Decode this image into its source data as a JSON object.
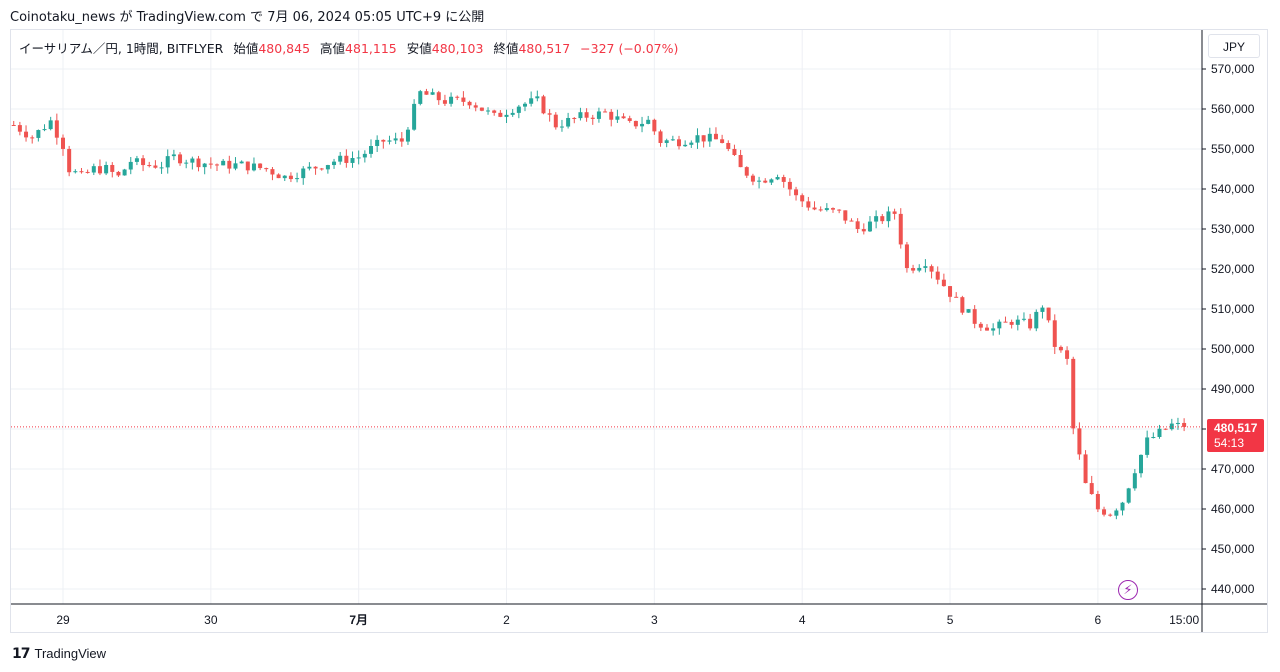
{
  "caption": "Coinotaku_news が TradingView.com で 7月 06, 2024 05:05 UTC+9 に公開",
  "legend": {
    "symbol": "イーサリアム／円, 1時間, BITFLYER",
    "open_label": "始値",
    "open": "480,845",
    "high_label": "高値",
    "high": "481,115",
    "low_label": "安値",
    "low": "480,103",
    "close_label": "終値",
    "close": "480,517",
    "change": "−327 (−0.07%)"
  },
  "currency": "JPY",
  "price_tag": {
    "price": "480,517",
    "countdown": "54:13"
  },
  "branding": "TradingView",
  "colors": {
    "up": "#26a69a",
    "down": "#ef5350",
    "grid": "#eef0f4",
    "tag": "#f23645"
  },
  "chart_data": {
    "type": "candlestick",
    "y_axis": {
      "min": 435000,
      "max": 575000,
      "ticks": [
        440000,
        450000,
        460000,
        470000,
        480000,
        490000,
        500000,
        510000,
        520000,
        530000,
        540000,
        550000,
        560000,
        570000
      ],
      "tick_labels": [
        "440,000",
        "450,000",
        "460,000",
        "470,000",
        "480,000",
        "490,000",
        "500,000",
        "510,000",
        "520,000",
        "530,000",
        "540,000",
        "550,000",
        "560,000",
        "570,000"
      ]
    },
    "x_axis": {
      "labels": [
        "29",
        "30",
        "7月",
        "2",
        "3",
        "4",
        "5",
        "6",
        "15:00"
      ],
      "label_hours": [
        0,
        24,
        48,
        72,
        96,
        120,
        144,
        168,
        182
      ],
      "label_bold": [
        false,
        false,
        true,
        false,
        false,
        false,
        false,
        false,
        false
      ]
    },
    "last_price": 480517,
    "anchors": [
      [
        -8,
        556000
      ],
      [
        -5,
        553000
      ],
      [
        -2,
        557000
      ],
      [
        0,
        551000
      ],
      [
        1,
        545000
      ],
      [
        3,
        543000
      ],
      [
        5,
        545000
      ],
      [
        7,
        545000
      ],
      [
        9,
        543000
      ],
      [
        11,
        547000
      ],
      [
        13,
        546000
      ],
      [
        16,
        546000
      ],
      [
        18,
        548000
      ],
      [
        21,
        547000
      ],
      [
        25,
        546000
      ],
      [
        29,
        546000
      ],
      [
        33,
        545000
      ],
      [
        36,
        543000
      ],
      [
        40,
        545000
      ],
      [
        44,
        547000
      ],
      [
        48,
        548000
      ],
      [
        52,
        552000
      ],
      [
        55,
        552000
      ],
      [
        58,
        564000
      ],
      [
        62,
        562000
      ],
      [
        66,
        562000
      ],
      [
        70,
        558000
      ],
      [
        74,
        561000
      ],
      [
        77,
        562000
      ],
      [
        80,
        556000
      ],
      [
        84,
        558000
      ],
      [
        88,
        559000
      ],
      [
        92,
        556000
      ],
      [
        95,
        557000
      ],
      [
        97,
        552000
      ],
      [
        100,
        552000
      ],
      [
        103,
        553000
      ],
      [
        107,
        552000
      ],
      [
        110,
        545000
      ],
      [
        113,
        542000
      ],
      [
        116,
        544000
      ],
      [
        119,
        538000
      ],
      [
        122,
        535000
      ],
      [
        126,
        534000
      ],
      [
        129,
        530000
      ],
      [
        132,
        532000
      ],
      [
        135,
        534000
      ],
      [
        137,
        520000
      ],
      [
        140,
        522000
      ],
      [
        142,
        518000
      ],
      [
        145,
        512000
      ],
      [
        148,
        507000
      ],
      [
        151,
        505000
      ],
      [
        154,
        507000
      ],
      [
        157,
        506000
      ],
      [
        159,
        511000
      ],
      [
        161,
        501000
      ],
      [
        163,
        497000
      ],
      [
        164,
        480000
      ],
      [
        166,
        466000
      ],
      [
        168,
        460000
      ],
      [
        170,
        459000
      ],
      [
        172,
        462000
      ],
      [
        174,
        470000
      ],
      [
        176,
        477000
      ],
      [
        178,
        479000
      ],
      [
        180,
        481000
      ],
      [
        182,
        480517
      ]
    ]
  }
}
